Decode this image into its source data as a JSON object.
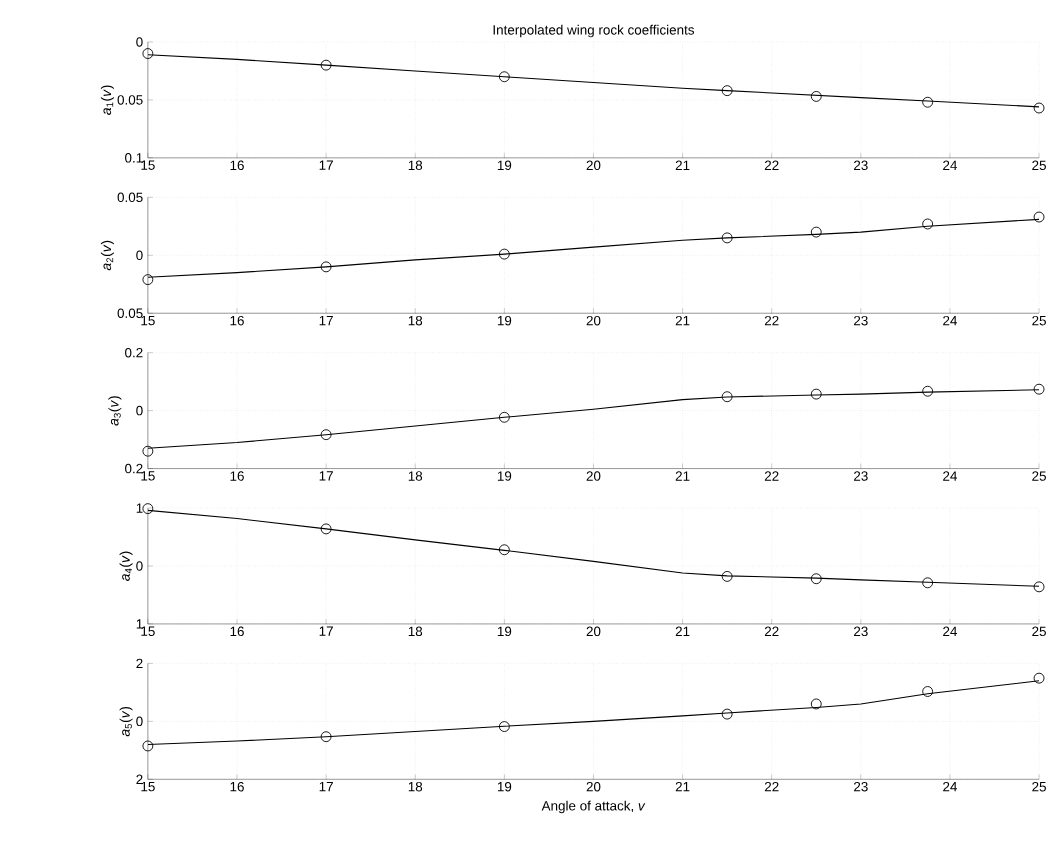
{
  "chart_data": [
    {
      "type": "line",
      "title": "Interpolated wing rock coefficients",
      "ylabel": "*a*$_{1}$(*v*)",
      "xlim": [
        15,
        25
      ],
      "xticks": [
        15,
        16,
        17,
        18,
        19,
        20,
        21,
        22,
        23,
        24,
        25
      ],
      "ylim": [
        -0.1,
        0
      ],
      "yticks": [
        {
          "value": -0.1,
          "label": "0.1"
        },
        {
          "value": -0.05,
          "label": "0.05"
        },
        0
      ],
      "grid": true,
      "series": [
        {
          "color": "#000000",
          "marker": "none",
          "line_style": "solid",
          "x": [
            15,
            16,
            17,
            18,
            19,
            20,
            21,
            21.5,
            22.5,
            23,
            23.75,
            25
          ],
          "values": [
            -0.011,
            -0.015,
            -0.02,
            -0.025,
            -0.03,
            -0.035,
            -0.04,
            -0.042,
            -0.046,
            -0.048,
            -0.051,
            -0.056
          ]
        },
        {
          "type": "scatter",
          "color": "#000000",
          "marker": "circle",
          "x": [
            15,
            17,
            19,
            21.5,
            22.5,
            23.75,
            25
          ],
          "values": [
            -0.01,
            -0.02,
            -0.03,
            -0.042,
            -0.047,
            -0.052,
            -0.057
          ]
        }
      ]
    },
    {
      "type": "line",
      "ylabel": "*a*$_{2}$(*v*)",
      "xlim": [
        15,
        25
      ],
      "xticks": [
        15,
        16,
        17,
        18,
        19,
        20,
        21,
        22,
        23,
        24,
        25
      ],
      "ylim": [
        -0.05,
        0.05
      ],
      "yticks": [
        {
          "value": -0.05,
          "label": "0.05"
        },
        0,
        0.05
      ],
      "grid": true,
      "series": [
        {
          "color": "#000000",
          "marker": "none",
          "line_style": "solid",
          "x": [
            15,
            16,
            17,
            18,
            19,
            20,
            21,
            21.5,
            22.5,
            23,
            23.75,
            25
          ],
          "values": [
            -0.019,
            -0.015,
            -0.01,
            -0.004,
            0.001,
            0.007,
            0.013,
            0.015,
            0.018,
            0.02,
            0.025,
            0.031
          ]
        },
        {
          "type": "scatter",
          "color": "#000000",
          "marker": "circle",
          "x": [
            15,
            17,
            19,
            21.5,
            22.5,
            23.75,
            25
          ],
          "values": [
            -0.021,
            -0.01,
            0.001,
            0.015,
            0.02,
            0.027,
            0.033
          ]
        }
      ]
    },
    {
      "type": "line",
      "ylabel": "*a*$_{3}$(*v*)",
      "xlim": [
        15,
        25
      ],
      "xticks": [
        15,
        16,
        17,
        18,
        19,
        20,
        21,
        22,
        23,
        24,
        25
      ],
      "ylim": [
        -0.2,
        0.2
      ],
      "yticks": [
        {
          "value": -0.2,
          "label": "0.2"
        },
        0,
        0.2
      ],
      "grid": true,
      "series": [
        {
          "color": "#000000",
          "marker": "none",
          "line_style": "solid",
          "x": [
            15,
            16,
            17,
            18,
            19,
            20,
            21,
            21.5,
            22.5,
            23,
            23.75,
            25
          ],
          "values": [
            -0.13,
            -0.11,
            -0.083,
            -0.053,
            -0.023,
            0.005,
            0.038,
            0.047,
            0.054,
            0.057,
            0.064,
            0.072
          ]
        },
        {
          "type": "scatter",
          "color": "#000000",
          "marker": "circle",
          "x": [
            15,
            17,
            19,
            21.5,
            22.5,
            23.75,
            25
          ],
          "values": [
            -0.14,
            -0.083,
            -0.023,
            0.048,
            0.057,
            0.067,
            0.074
          ]
        }
      ]
    },
    {
      "type": "line",
      "ylabel": "*a*$_{4}$(*v*)",
      "xlim": [
        15,
        25
      ],
      "xticks": [
        15,
        16,
        17,
        18,
        19,
        20,
        21,
        22,
        23,
        24,
        25
      ],
      "ylim": [
        -1,
        1
      ],
      "yticks": [
        {
          "value": -1,
          "label": "1"
        },
        0,
        1
      ],
      "grid": true,
      "series": [
        {
          "color": "#000000",
          "marker": "none",
          "line_style": "solid",
          "x": [
            15,
            16,
            17,
            18,
            19,
            20,
            21,
            21.5,
            22.5,
            23,
            23.75,
            25
          ],
          "values": [
            0.96,
            0.82,
            0.64,
            0.45,
            0.27,
            0.08,
            -0.12,
            -0.17,
            -0.21,
            -0.24,
            -0.28,
            -0.35
          ]
        },
        {
          "type": "scatter",
          "color": "#000000",
          "marker": "circle",
          "x": [
            15,
            17,
            19,
            21.5,
            22.5,
            23.75,
            25
          ],
          "values": [
            0.99,
            0.64,
            0.28,
            -0.18,
            -0.22,
            -0.29,
            -0.36
          ]
        }
      ]
    },
    {
      "type": "line",
      "ylabel": "*a*$_{5}$(*v*)",
      "xlabel": "Angle of attack, *v*",
      "xlim": [
        15,
        25
      ],
      "xticks": [
        15,
        16,
        17,
        18,
        19,
        20,
        21,
        22,
        23,
        24,
        25
      ],
      "ylim": [
        -2,
        2
      ],
      "yticks": [
        {
          "value": -2,
          "label": "2"
        },
        0,
        2
      ],
      "grid": true,
      "series": [
        {
          "color": "#000000",
          "marker": "none",
          "line_style": "solid",
          "x": [
            15,
            16,
            17,
            18,
            19,
            20,
            21,
            21.5,
            22.5,
            23,
            23.75,
            25
          ],
          "values": [
            -0.8,
            -0.68,
            -0.53,
            -0.35,
            -0.17,
            0.0,
            0.19,
            0.29,
            0.48,
            0.6,
            0.95,
            1.4
          ]
        },
        {
          "type": "scatter",
          "color": "#000000",
          "marker": "circle",
          "x": [
            15,
            17,
            19,
            21.5,
            22.5,
            23.75,
            25
          ],
          "values": [
            -0.85,
            -0.53,
            -0.18,
            0.25,
            0.6,
            1.03,
            1.49
          ]
        }
      ]
    }
  ]
}
